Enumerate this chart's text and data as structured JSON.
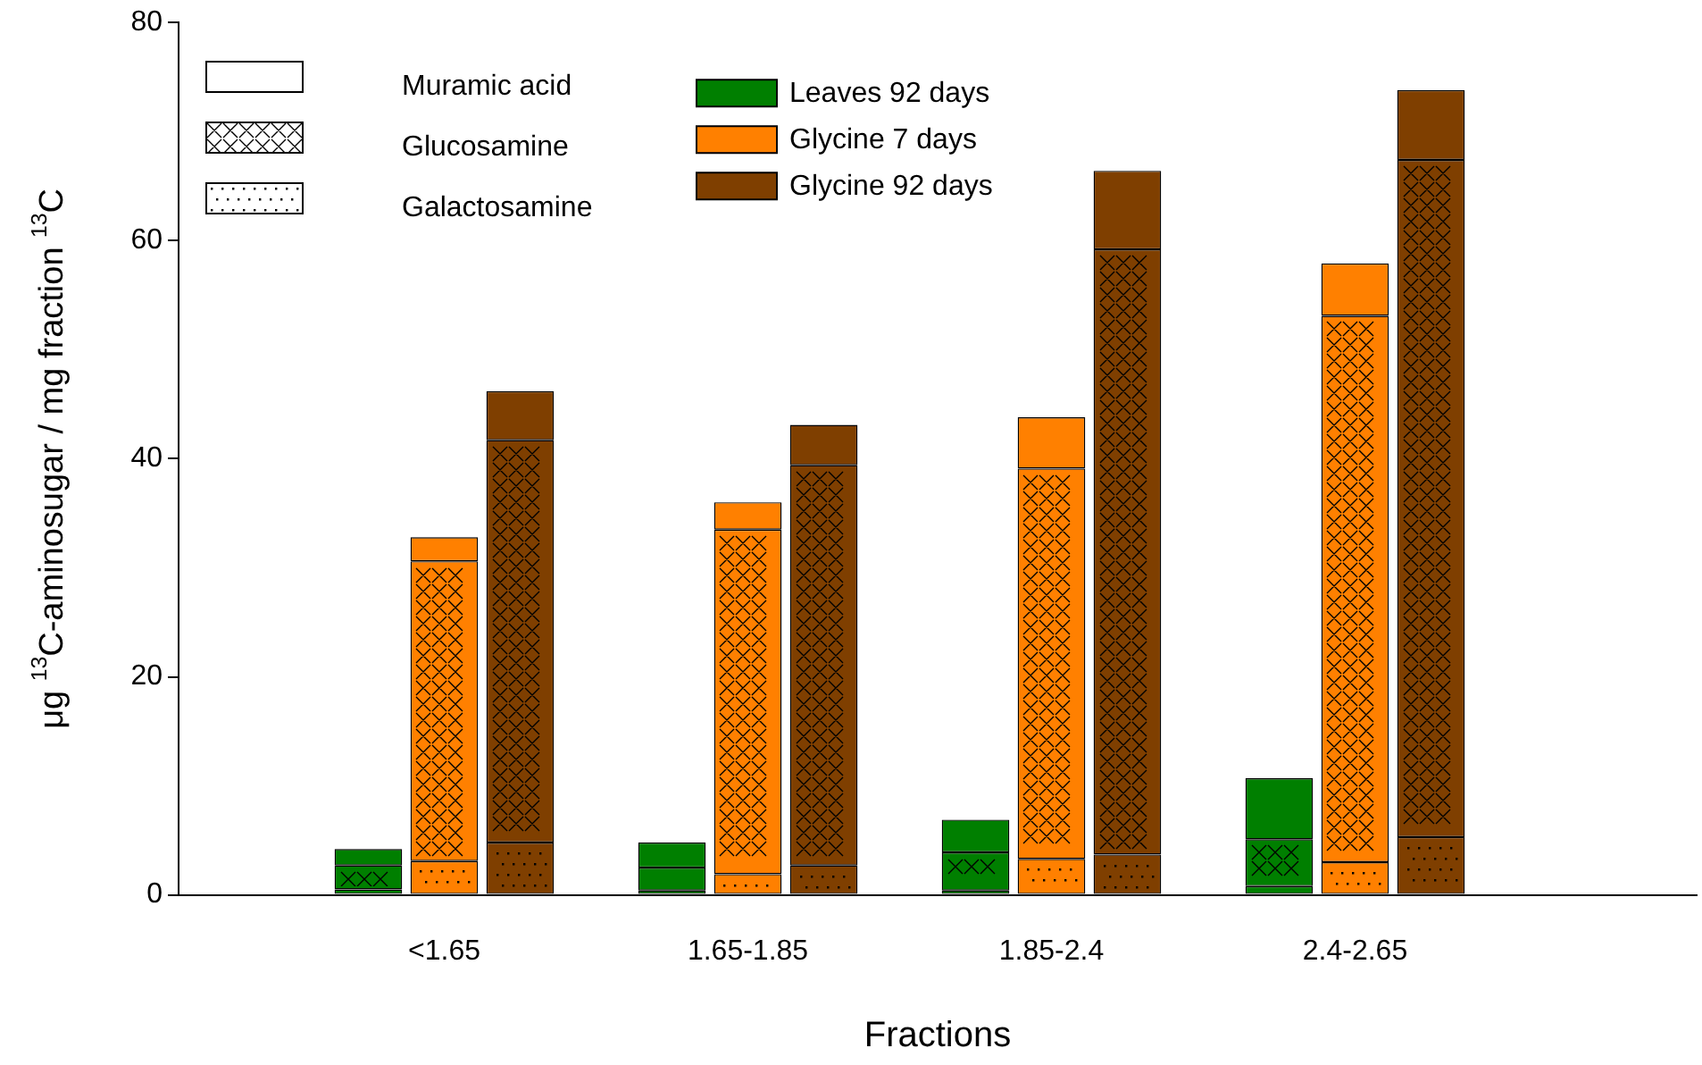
{
  "chart_data": {
    "type": "bar",
    "stacked": true,
    "xlabel": "Fractions",
    "ylabel": "μg $^{13}$C-aminosugar / mg fraction $^{13}$C",
    "categories": [
      null,
      null,
      null,
      "<1.65",
      null,
      null,
      null,
      "1.65-1.85",
      null,
      null,
      null,
      "1.85-2.4",
      null,
      null,
      null,
      "2.4-2.65",
      null,
      null,
      null,
      null
    ],
    "series": [
      {
        "color": "#007f00",
        "values": [
          null,
          null,
          0.5,
          null,
          null,
          null,
          0.4,
          null,
          null,
          null,
          0.4,
          null,
          null,
          null,
          0.8,
          null,
          null,
          null,
          null,
          null
        ]
      },
      {
        "color": "#007f00",
        "values": [
          null,
          null,
          2.2,
          null,
          null,
          null,
          2.1,
          null,
          null,
          null,
          3.5,
          null,
          null,
          null,
          4.3,
          null,
          null,
          null,
          null,
          null
        ]
      },
      {
        "name": "Leaves 92 days",
        "color": "#007f00",
        "values": [
          null,
          null,
          1.5,
          null,
          null,
          null,
          2.3,
          null,
          null,
          null,
          3.0,
          null,
          null,
          null,
          5.6,
          null,
          null,
          null,
          null,
          null
        ]
      },
      {
        "color": "#ff8000",
        "values": [
          null,
          null,
          null,
          3.1,
          null,
          null,
          null,
          1.9,
          null,
          null,
          null,
          3.3,
          null,
          null,
          null,
          3.0,
          null,
          null,
          null,
          null
        ]
      },
      {
        "color": "#ff8000",
        "values": [
          null,
          null,
          null,
          27.5,
          null,
          null,
          null,
          31.6,
          null,
          null,
          null,
          35.8,
          null,
          null,
          null,
          50.1,
          null,
          null,
          null,
          null
        ]
      },
      {
        "name": "Glycine 7 days",
        "color": "#ff8000",
        "values": [
          null,
          null,
          null,
          2.2,
          null,
          null,
          null,
          2.5,
          null,
          null,
          null,
          4.7,
          null,
          null,
          null,
          4.8,
          null,
          null,
          null,
          null
        ]
      },
      {
        "color": "#7f3f00",
        "values": [
          null,
          null,
          null,
          null,
          4.8,
          null,
          null,
          null,
          2.7,
          null,
          null,
          null,
          3.7,
          null,
          null,
          null,
          5.3,
          null,
          null,
          null
        ]
      },
      {
        "color": "#7f3f00",
        "values": [
          null,
          null,
          null,
          null,
          36.9,
          null,
          null,
          null,
          36.7,
          null,
          null,
          null,
          55.5,
          null,
          null,
          null,
          62.1,
          null,
          null,
          null
        ]
      },
      {
        "name": "Glycine 92 days",
        "color": "#7f3f00",
        "values": [
          null,
          null,
          null,
          null,
          4.5,
          null,
          null,
          null,
          3.7,
          null,
          null,
          null,
          7.2,
          null,
          null,
          null,
          6.4,
          null,
          null,
          null
        ]
      }
    ],
    "annotations": [
      "Muramic acid",
      "Glucosamine",
      "Galactosamine"
    ],
    "ylim": [
      0,
      80
    ],
    "yticks": [
      0,
      20,
      40,
      60,
      80
    ],
    "legend": "top left"
  }
}
